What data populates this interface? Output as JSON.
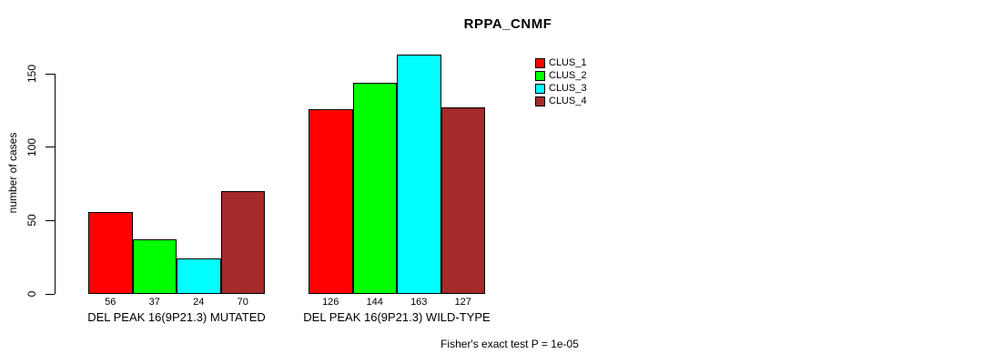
{
  "chart_data": {
    "type": "bar",
    "title": "RPPA_CNMF",
    "ylabel": "number of cases",
    "xlabel": "",
    "ylim": [
      0,
      150
    ],
    "yticks": [
      0,
      50,
      100,
      150
    ],
    "grid": false,
    "legend_position": "top-right",
    "background": "#FFFFFF",
    "bar_border_color": "#000000",
    "series": [
      {
        "name": "CLUS_1",
        "color": "#FF0000"
      },
      {
        "name": "CLUS_2",
        "color": "#00FF00"
      },
      {
        "name": "CLUS_3",
        "color": "#00FFFF"
      },
      {
        "name": "CLUS_4",
        "color": "#A52A2A"
      }
    ],
    "groups": [
      {
        "label": "DEL PEAK 16(9P21.3) MUTATED",
        "values": [
          56,
          37,
          24,
          70
        ]
      },
      {
        "label": "DEL PEAK 16(9P21.3) WILD-TYPE",
        "values": [
          126,
          144,
          163,
          127
        ]
      }
    ],
    "footnote": "Fisher's exact test P = 1e-05"
  }
}
